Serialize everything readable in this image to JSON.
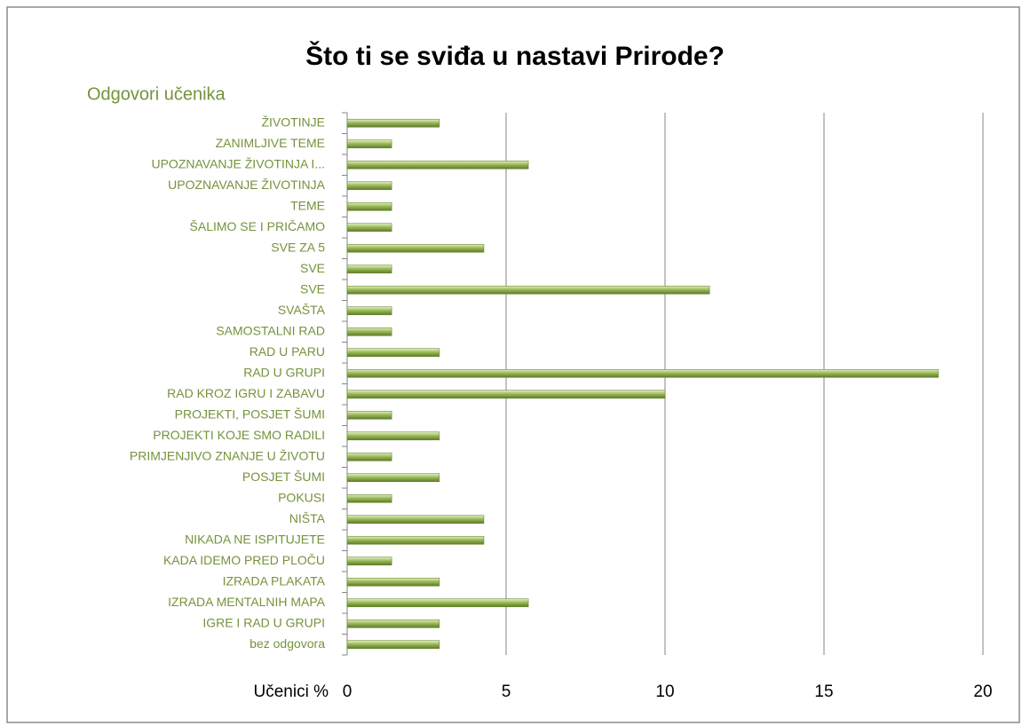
{
  "chart_data": {
    "type": "barh",
    "title": "Što ti se sviđa u nastavi Prirode?",
    "y_label": "Odgovori učenika",
    "x_label": "Učenici %",
    "categories": [
      "ŽIVOTINJE",
      "ZANIMLJIVE TEME",
      "UPOZNAVANJE ŽIVOTINJA I...",
      "UPOZNAVANJE ŽIVOTINJA",
      "TEME",
      "ŠALIMO SE I PRIČAMO",
      "SVE ZA 5",
      "SVE ",
      "SVE",
      "SVAŠTA",
      "SAMOSTALNI RAD",
      "RAD U PARU",
      "RAD U GRUPI",
      "RAD KROZ IGRU I ZABAVU",
      "PROJEKTI, POSJET ŠUMI",
      "PROJEKTI KOJE SMO RADILI",
      "PRIMJENJIVO ZNANJE U ŽIVOTU",
      "POSJET ŠUMI",
      "POKUSI",
      "NIŠTA",
      "NIKADA NE ISPITUJETE",
      "KADA IDEMO PRED PLOČU",
      "IZRADA PLAKATA",
      "IZRADA MENTALNIH MAPA",
      "IGRE I RAD U GRUPI",
      "bez odgovora"
    ],
    "values": [
      2.9,
      1.4,
      5.7,
      1.4,
      1.4,
      1.4,
      4.3,
      1.4,
      11.4,
      1.4,
      1.4,
      2.9,
      18.6,
      10,
      1.4,
      2.9,
      1.4,
      2.9,
      1.4,
      4.3,
      4.3,
      1.4,
      2.9,
      5.7,
      2.9,
      2.9
    ],
    "color": "#9bbb59",
    "xlim": [
      0,
      20
    ],
    "xticks": [
      0,
      5,
      10,
      15,
      20
    ],
    "grid": true
  }
}
